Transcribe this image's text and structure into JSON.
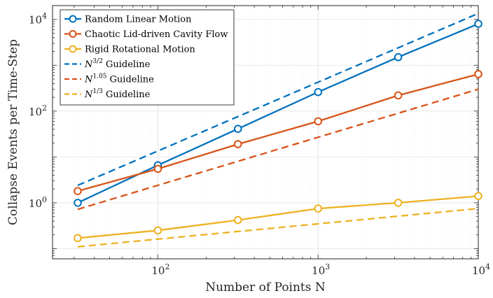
{
  "chart_data": {
    "type": "line",
    "title": "",
    "xlabel": "Number of Points N",
    "ylabel": "Collapse Events per Time-Step",
    "xscale": "log",
    "yscale": "log",
    "xlim": [
      22,
      10000
    ],
    "ylim": [
      0.06,
      20000
    ],
    "grid": true,
    "legend_location": "top-left",
    "x_ticks": [
      {
        "value": 100,
        "base": "10",
        "exp": "2"
      },
      {
        "value": 1000,
        "base": "10",
        "exp": "3"
      },
      {
        "value": 10000,
        "base": "10",
        "exp": "4"
      }
    ],
    "y_ticks": [
      {
        "value": 1,
        "base": "10",
        "exp": "0"
      },
      {
        "value": 100,
        "base": "10",
        "exp": "2"
      },
      {
        "value": 10000,
        "base": "10",
        "exp": "4"
      }
    ],
    "series": [
      {
        "name": "Random Linear Motion",
        "label_text": "Random Linear Motion",
        "label_sup": "",
        "label_suffix": "",
        "color": "#0072BD",
        "style": "solid",
        "marker": "circle",
        "x": [
          31.6,
          100,
          316,
          1000,
          3162,
          10000
        ],
        "y": [
          1.0,
          6.6,
          41,
          260,
          1500,
          8000
        ]
      },
      {
        "name": "Chaotic Lid-driven Cavity Flow",
        "label_text": "Chaotic Lid-driven Cavity Flow",
        "label_sup": "",
        "label_suffix": "",
        "color": "#D95319",
        "style": "solid",
        "marker": "circle",
        "x": [
          31.6,
          100,
          316,
          1000,
          3162,
          10000
        ],
        "y": [
          1.8,
          5.5,
          19,
          60,
          220,
          640
        ]
      },
      {
        "name": "Rigid Rotational Motion",
        "label_text": "Rigid Rotational Motion",
        "label_sup": "",
        "label_suffix": "",
        "color": "#EDB120",
        "style": "solid",
        "marker": "circle",
        "x": [
          31.6,
          100,
          316,
          1000,
          3162,
          10000
        ],
        "y": [
          0.17,
          0.25,
          0.42,
          0.75,
          1.0,
          1.4
        ]
      },
      {
        "name": "N^3/2 Guideline",
        "label_text": "N",
        "label_sup": "3/2",
        "label_suffix": " Guideline",
        "color": "#0072BD",
        "style": "dashed",
        "marker": "none",
        "x": [
          31.6,
          10000
        ],
        "y": [
          2.4,
          13500
        ]
      },
      {
        "name": "N^1.05 Guideline",
        "label_text": "N",
        "label_sup": "1.05",
        "label_suffix": " Guideline",
        "color": "#D95319",
        "style": "dashed",
        "marker": "none",
        "x": [
          31.6,
          10000
        ],
        "y": [
          0.72,
          300
        ]
      },
      {
        "name": "N^1/3 Guideline",
        "label_text": "N",
        "label_sup": "1/3",
        "label_suffix": " Guideline",
        "color": "#EDB120",
        "style": "dashed",
        "marker": "none",
        "x": [
          31.6,
          10000
        ],
        "y": [
          0.11,
          0.75
        ]
      }
    ]
  }
}
